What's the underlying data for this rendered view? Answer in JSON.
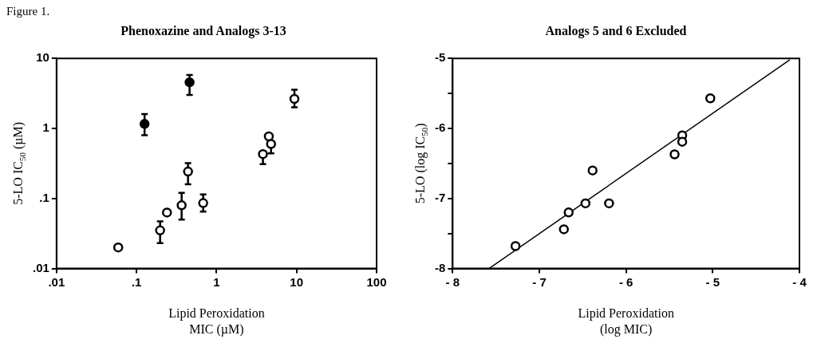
{
  "chart_data": [
    {
      "type": "scatter",
      "title": "Phenoxazine and Analogs 3-13",
      "xlabel": "Lipid Peroxidation\nMIC (µM)",
      "ylabel": "5-LO IC$_{50}$ (µM)",
      "annotations": [
        "Figure 1."
      ],
      "log": "xy",
      "grid": false,
      "legend": false,
      "marker": "circle",
      "xlim": [
        0.01,
        100
      ],
      "ylim": [
        0.01,
        10
      ],
      "xticks": [
        {
          "value": 0.01,
          "label": ".01"
        },
        {
          "value": 0.1,
          "label": ".1"
        },
        1,
        10,
        100
      ],
      "yticks": [
        {
          "value": 0.01,
          "label": ".01"
        },
        {
          "value": 0.1,
          "label": ".1"
        },
        1,
        10
      ],
      "series": [
        {
          "color": "#000000",
          "x": [
            0.126,
            0.46
          ],
          "values": [
            1.16,
            4.56
          ],
          "errors": [
            [
              0.8,
              1.6
            ],
            [
              3.0,
              5.8
            ]
          ]
        },
        {
          "color": "#ffffff",
          "x": [
            0.059,
            0.197,
            0.24,
            0.366,
            0.44,
            0.68,
            3.8,
            4.5,
            4.8,
            9.4
          ],
          "values": [
            0.02,
            0.035,
            0.063,
            0.08,
            0.242,
            0.086,
            0.43,
            0.77,
            0.6,
            2.64
          ],
          "errors": [
            null,
            [
              0.023,
              0.047
            ],
            null,
            [
              0.05,
              0.12
            ],
            [
              0.16,
              0.32
            ],
            [
              0.065,
              0.114
            ],
            [
              0.31,
              0.43
            ],
            null,
            [
              0.44,
              0.6
            ],
            [
              2.0,
              3.57
            ]
          ]
        }
      ]
    },
    {
      "type": "scatter",
      "title": "Analogs 5 and 6 Excluded",
      "xlabel": "Lipid Peroxidation\n(log MIC)",
      "ylabel": "5-LO (log IC$_{50}$)",
      "grid": false,
      "legend": false,
      "marker": "circle",
      "xlim": [
        -8,
        -4
      ],
      "ylim": [
        -8,
        -5
      ],
      "xticks": [
        {
          "value": -8,
          "label": "- 8"
        },
        {
          "value": -7,
          "label": "- 7"
        },
        {
          "value": -6,
          "label": "- 6"
        },
        {
          "value": -5,
          "label": "- 5"
        },
        {
          "value": -4,
          "label": "- 4"
        }
      ],
      "yticks": [
        -8,
        {
          "value": -7.5,
          "label": null
        },
        -7,
        {
          "value": -6.5,
          "label": null
        },
        -6,
        {
          "value": -5.5,
          "label": null
        },
        -5
      ],
      "series": [
        {
          "color": "#ffffff",
          "x": [
            -7.275,
            -6.717,
            -6.662,
            -6.468,
            -6.386,
            -6.196,
            -5.44,
            -5.352,
            -5.352,
            -5.028
          ],
          "values": [
            -7.68,
            -7.44,
            -7.2,
            -7.07,
            -6.6,
            -7.07,
            -6.37,
            -6.1,
            -6.19,
            -5.57
          ]
        },
        {
          "type": "line",
          "marker": "none",
          "color": "#000000",
          "x": [
            -7.58,
            -4.11
          ],
          "values": [
            -8,
            -5.02
          ]
        }
      ]
    }
  ]
}
